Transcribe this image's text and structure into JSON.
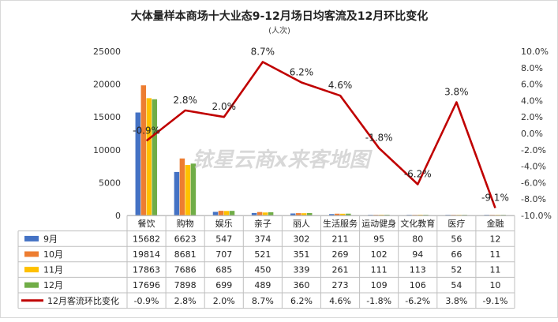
{
  "chart_data": {
    "type": "bar",
    "title": "大体量样本商场十大业态9-12月场日均客流及12月环比变化",
    "subtitle": "(人次)",
    "watermark": "铱星云商x来客地图",
    "categories": [
      "餐饮",
      "购物",
      "娱乐",
      "亲子",
      "丽人",
      "生活服务",
      "运动健身",
      "文化教育",
      "医疗",
      "金融"
    ],
    "series": [
      {
        "name": "9月",
        "type": "bar",
        "axis": "left",
        "color": "#4472c4",
        "values": [
          15682,
          6623,
          547,
          374,
          302,
          211,
          95,
          80,
          56,
          12
        ]
      },
      {
        "name": "10月",
        "type": "bar",
        "axis": "left",
        "color": "#ed7d31",
        "values": [
          19814,
          8681,
          707,
          521,
          351,
          269,
          102,
          94,
          66,
          11
        ]
      },
      {
        "name": "11月",
        "type": "bar",
        "axis": "left",
        "color": "#ffc000",
        "values": [
          17863,
          7686,
          685,
          450,
          339,
          261,
          111,
          113,
          52,
          11
        ]
      },
      {
        "name": "12月",
        "type": "bar",
        "axis": "left",
        "color": "#70ad47",
        "values": [
          17696,
          7898,
          699,
          489,
          360,
          273,
          109,
          106,
          54,
          10
        ]
      },
      {
        "name": "12月客流环比变化",
        "type": "line",
        "axis": "right",
        "color": "#c00000",
        "values": [
          -0.9,
          2.8,
          2.0,
          8.7,
          6.2,
          4.6,
          -1.8,
          -6.2,
          3.8,
          -9.1
        ],
        "labels": [
          "-0.9%",
          "2.8%",
          "2.0%",
          "8.7%",
          "6.2%",
          "4.6%",
          "-1.8%",
          "-6.2%",
          "3.8%",
          "-9.1%"
        ]
      }
    ],
    "y_left": {
      "min": 0,
      "max": 25000,
      "ticks": [
        "0",
        "5000",
        "10000",
        "15000",
        "20000",
        "25000"
      ]
    },
    "y_right": {
      "min": -10,
      "max": 10,
      "ticks": [
        "10.0%",
        "8.0%",
        "6.0%",
        "4.0%",
        "2.0%",
        "0.0%",
        "-2.0%",
        "-4.0%",
        "-6.0%",
        "-8.0%",
        "-10.0%"
      ]
    },
    "data_table": true,
    "gridlines": false
  }
}
